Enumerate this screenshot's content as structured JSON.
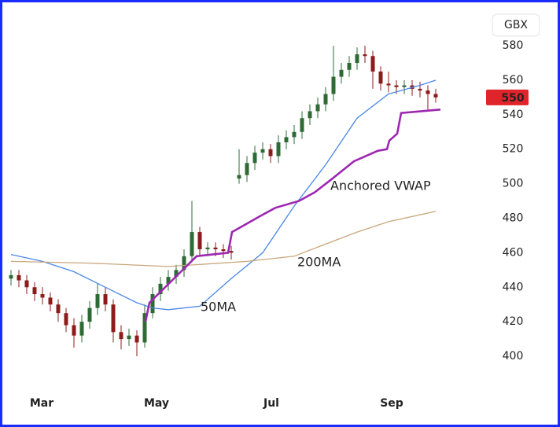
{
  "chart_data": {
    "type": "candlestick",
    "currency": "GBX",
    "last_price": 550,
    "x": [
      0,
      1,
      2,
      3,
      4,
      5,
      6,
      7,
      8,
      9,
      10,
      11,
      12,
      13,
      14,
      15,
      16,
      17,
      18,
      19,
      20,
      21,
      22,
      23,
      24,
      25,
      26,
      27,
      28,
      29,
      30,
      31,
      32,
      33,
      34,
      35,
      36,
      37,
      38,
      39,
      40,
      41,
      42,
      43,
      44,
      45,
      46,
      47,
      48,
      49,
      50,
      51,
      52,
      53,
      54
    ],
    "open": [
      445,
      447,
      444,
      440,
      436,
      434,
      430,
      425,
      418,
      412,
      420,
      428,
      436,
      430,
      414,
      410,
      412,
      408,
      425,
      436,
      442,
      446,
      450,
      458,
      472,
      462,
      463,
      462,
      461,
      503,
      505,
      512,
      518,
      520,
      516,
      524,
      527,
      530,
      538,
      542,
      546,
      552,
      562,
      566,
      570,
      575,
      574,
      565,
      558,
      557,
      556,
      557,
      555,
      554,
      552
    ],
    "high": [
      450,
      450,
      447,
      443,
      440,
      437,
      433,
      428,
      422,
      424,
      432,
      442,
      440,
      433,
      418,
      416,
      415,
      430,
      440,
      446,
      450,
      453,
      462,
      490,
      475,
      466,
      466,
      465,
      464,
      520,
      516,
      522,
      524,
      523,
      528,
      531,
      534,
      542,
      546,
      550,
      556,
      580,
      570,
      574,
      579,
      580,
      577,
      568,
      565,
      560,
      560,
      560,
      559,
      557,
      555
    ],
    "low": [
      441,
      440,
      436,
      432,
      430,
      426,
      420,
      414,
      405,
      408,
      416,
      424,
      426,
      408,
      404,
      406,
      400,
      405,
      422,
      432,
      438,
      442,
      446,
      455,
      458,
      459,
      458,
      457,
      456,
      500,
      501,
      508,
      514,
      512,
      512,
      520,
      523,
      526,
      534,
      538,
      542,
      548,
      558,
      562,
      566,
      570,
      555,
      554,
      553,
      552,
      552,
      551,
      550,
      542,
      547
    ],
    "close": [
      447,
      444,
      440,
      436,
      434,
      430,
      425,
      418,
      412,
      420,
      428,
      436,
      430,
      414,
      410,
      412,
      408,
      425,
      436,
      442,
      446,
      450,
      458,
      472,
      462,
      463,
      462,
      461,
      460,
      505,
      512,
      518,
      520,
      516,
      524,
      527,
      530,
      538,
      542,
      546,
      552,
      562,
      566,
      570,
      575,
      574,
      565,
      558,
      557,
      556,
      557,
      555,
      554,
      552,
      550
    ],
    "up_color": "#2e6b34",
    "down_color": "#8e1b1b",
    "lines": [
      {
        "name": "50MA",
        "color": "#4a86e8",
        "x": [
          0,
          4,
          8,
          12,
          16,
          18,
          20,
          24,
          28,
          32,
          36,
          40,
          44,
          48,
          52,
          54
        ],
        "values": [
          459,
          455,
          449,
          440,
          431,
          428,
          427,
          429,
          445,
          460,
          487,
          511,
          538,
          552,
          557,
          560
        ]
      },
      {
        "name": "200MA",
        "color": "#c9a77c",
        "x": [
          0,
          10,
          20,
          30,
          36,
          40,
          44,
          48,
          54
        ],
        "values": [
          455,
          454,
          452,
          455,
          458,
          465,
          472,
          478,
          484
        ]
      },
      {
        "name": "Anchored VWAP",
        "color": "#9c27b0",
        "x": [
          17.1,
          17.6,
          21.6,
          23.6,
          27.6,
          28.1,
          31.6,
          33.6,
          36.6,
          38.6,
          40.6,
          43.6,
          46.6,
          47.8,
          48.1,
          49.1,
          49.6,
          54.6
        ],
        "values": [
          420,
          431,
          449,
          458,
          460,
          472,
          481,
          486,
          490,
          495,
          502,
          513,
          519,
          520,
          525,
          529,
          541,
          543
        ]
      }
    ],
    "xlim": [
      -0.2,
      58.8
    ],
    "xticks": [
      {
        "value": 3.9,
        "label": "Mar"
      },
      {
        "value": 18.5,
        "label": "May"
      },
      {
        "value": 33.1,
        "label": "Jul"
      },
      {
        "value": 48.4,
        "label": "Sep"
      }
    ],
    "ylim": [
      378.6,
      601.0
    ],
    "yticks": [
      400,
      420,
      440,
      460,
      480,
      500,
      520,
      540,
      560,
      580
    ]
  }
}
